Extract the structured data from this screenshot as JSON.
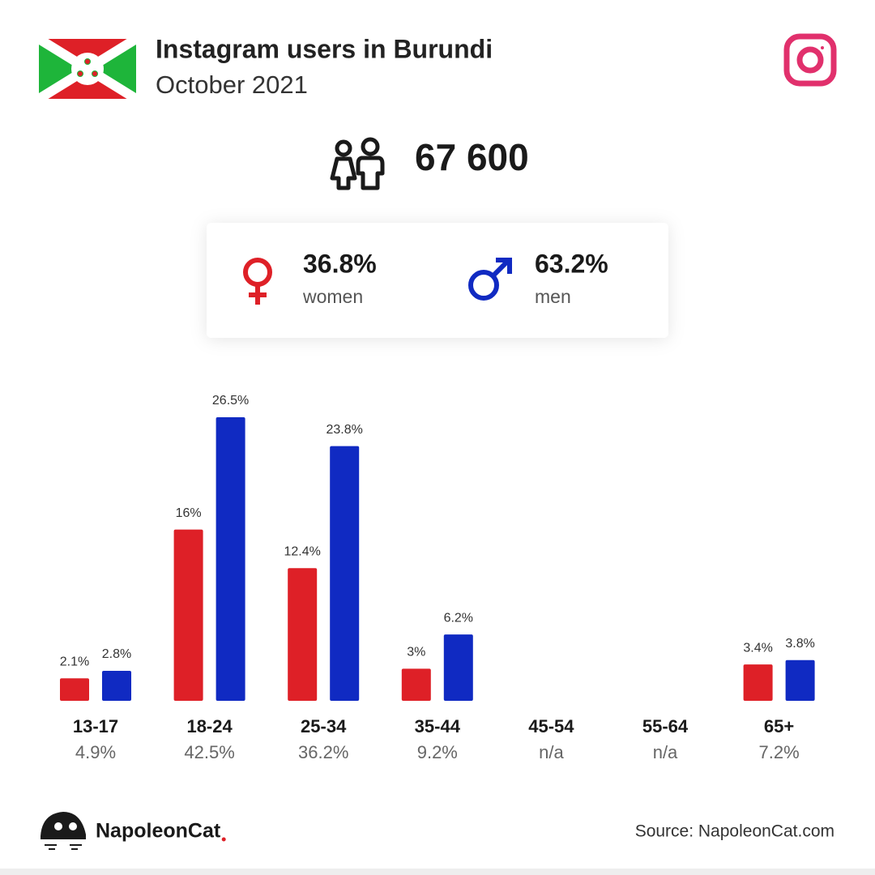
{
  "header": {
    "title": "Instagram users in Burundi",
    "subtitle": "October 2021"
  },
  "summary": {
    "total": "67 600",
    "women_share": "36.8%",
    "men_share": "63.2%"
  },
  "chart_data": {
    "type": "bar",
    "categories": [
      "13-17",
      "18-24",
      "25-34",
      "35-44",
      "45-54",
      "55-64",
      "65+"
    ],
    "category_totals": [
      "4.9%",
      "42.5%",
      "36.2%",
      "9.2%",
      "n/a",
      "n/a",
      "7.2%"
    ],
    "series": [
      {
        "name": "women",
        "color": "#de2027",
        "values": [
          2.1,
          16,
          12.4,
          3,
          null,
          null,
          3.4
        ],
        "value_labels": [
          "2.1%",
          "16%",
          "12.4%",
          "3%",
          null,
          null,
          "3.4%"
        ]
      },
      {
        "name": "men",
        "color": "#102ac2",
        "values": [
          2.8,
          26.5,
          23.8,
          6.2,
          null,
          null,
          3.8
        ],
        "value_labels": [
          "2.8%",
          "26.5%",
          "23.8%",
          "6.2%",
          null,
          null,
          "3.8%"
        ]
      }
    ],
    "ylim": [
      0,
      26.5
    ]
  },
  "footer": {
    "brand": "NapoleonCat",
    "source": "Source: NapoleonCat.com"
  }
}
